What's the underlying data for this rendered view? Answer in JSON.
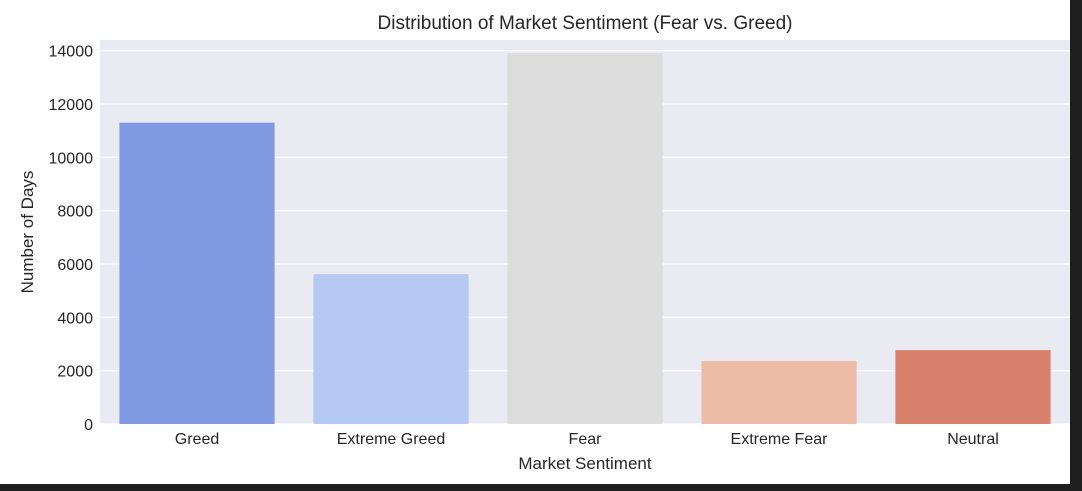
{
  "chart_data": {
    "type": "bar",
    "title": "Distribution of Market Sentiment (Fear vs. Greed)",
    "xlabel": "Market Sentiment",
    "ylabel": "Number of Days",
    "categories": [
      "Greed",
      "Extreme Greed",
      "Fear",
      "Extreme Fear",
      "Neutral"
    ],
    "values": [
      11300,
      5620,
      13900,
      2360,
      2770
    ],
    "colors": [
      "#7f9ae3",
      "#b6c9f2",
      "#dcdcdc",
      "#eebca6",
      "#d7806c"
    ],
    "ylim": [
      0,
      14400
    ],
    "yticks": [
      0,
      2000,
      4000,
      6000,
      8000,
      10000,
      12000,
      14000
    ],
    "ytick_labels": [
      "0",
      "2000",
      "4000",
      "6000",
      "8000",
      "10000",
      "12000",
      "14000"
    ],
    "grid": true,
    "background": "#eaeaf2",
    "grid_color": "#ffffff"
  }
}
